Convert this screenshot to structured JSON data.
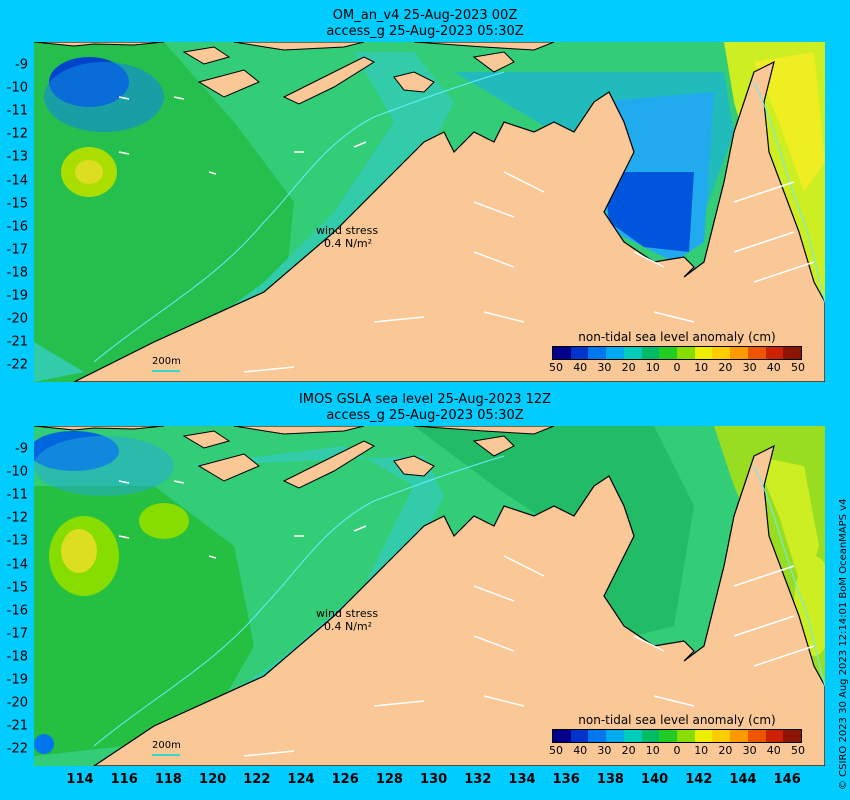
{
  "panels": [
    {
      "title_line1": "OM_an_v4  25-Aug-2023 00Z",
      "title_line2": "access_g 25-Aug-2023 05:30Z",
      "wind_label_1": "wind stress",
      "wind_label_2": "0.4 N/m²",
      "depth_label": "200m",
      "colorbar_title": "non-tidal sea level anomaly (cm)"
    },
    {
      "title_line1": "IMOS GSLA sea level  25-Aug-2023 12Z",
      "title_line2": "access_g 25-Aug-2023 05:30Z",
      "wind_label_1": "wind stress",
      "wind_label_2": "0.4 N/m²",
      "depth_label": "200m",
      "colorbar_title": "non-tidal sea level anomaly (cm)"
    }
  ],
  "latitude_ticks": [
    "-9",
    "-10",
    "-11",
    "-12",
    "-13",
    "-14",
    "-15",
    "-16",
    "-17",
    "-18",
    "-19",
    "-20",
    "-21",
    "-22"
  ],
  "longitude_ticks": [
    "114",
    "116",
    "118",
    "120",
    "122",
    "124",
    "126",
    "128",
    "130",
    "132",
    "134",
    "136",
    "138",
    "140",
    "142",
    "144",
    "146"
  ],
  "colorbar_ticks": [
    "50",
    "40",
    "30",
    "20",
    "10",
    "0",
    "10",
    "20",
    "30",
    "40",
    "50"
  ],
  "colorbar_colors": [
    "#00008b",
    "#0033cc",
    "#0077ee",
    "#00aaee",
    "#00ccbb",
    "#00bb66",
    "#22cc22",
    "#88dd00",
    "#eeee00",
    "#ffcc00",
    "#ff9900",
    "#ee5500",
    "#cc2200",
    "#8b1500"
  ],
  "credit": "© CSIRO 2023   30 Aug 2023 12:14:01 BoM OceanMAPS v4",
  "colors": {
    "ocean_frame": "#00ccff",
    "land": "#f9c896",
    "coast": "#000000"
  }
}
